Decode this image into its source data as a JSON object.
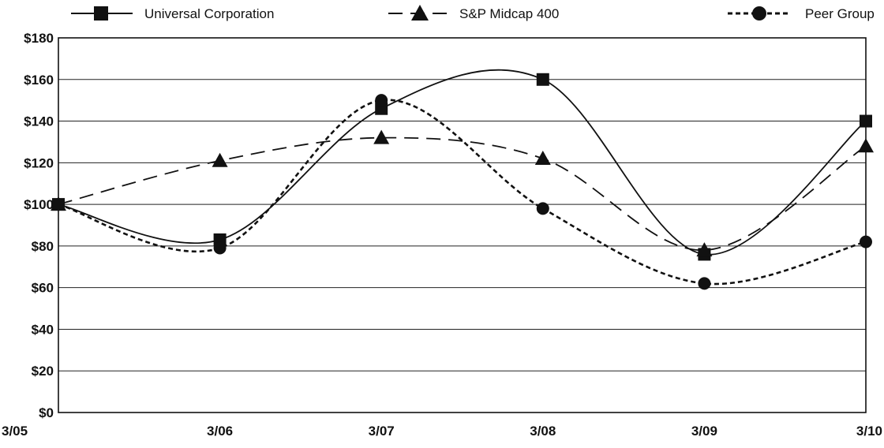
{
  "chart_data": {
    "type": "line",
    "title": "",
    "xlabel": "",
    "ylabel": "",
    "categories": [
      "3/05",
      "3/06",
      "3/07",
      "3/08",
      "3/09",
      "3/10"
    ],
    "y_ticks": [
      "$0",
      "$20",
      "$40",
      "$60",
      "$80",
      "$100",
      "$120",
      "$140",
      "$160",
      "$180"
    ],
    "ylim": [
      0,
      180
    ],
    "grid": "horizontal",
    "legend_position": "top",
    "series": [
      {
        "name": "Universal Corporation",
        "values": [
          100,
          83,
          146,
          160,
          76,
          140
        ],
        "marker": "square",
        "line_style": "solid",
        "color": "#111111"
      },
      {
        "name": "S&P Midcap 400",
        "values": [
          100,
          121,
          132,
          122,
          78,
          128
        ],
        "marker": "triangle",
        "line_style": "dashed",
        "color": "#111111"
      },
      {
        "name": "Peer Group",
        "values": [
          100,
          79,
          150,
          98,
          62,
          82
        ],
        "marker": "circle",
        "line_style": "dotted",
        "color": "#111111"
      }
    ]
  }
}
